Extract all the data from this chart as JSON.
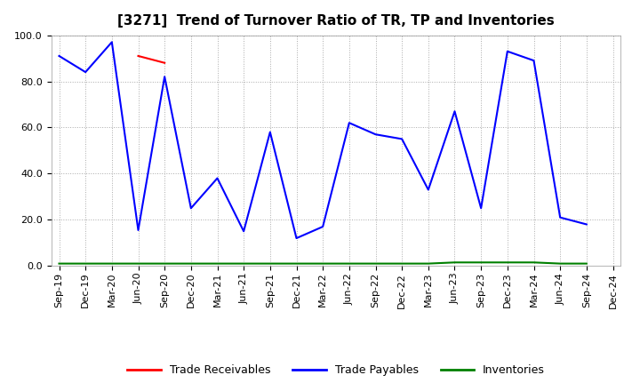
{
  "title": "[3271]  Trend of Turnover Ratio of TR, TP and Inventories",
  "x_labels": [
    "Sep-19",
    "Dec-19",
    "Mar-20",
    "Jun-20",
    "Sep-20",
    "Dec-20",
    "Mar-21",
    "Jun-21",
    "Sep-21",
    "Dec-21",
    "Mar-22",
    "Jun-22",
    "Sep-22",
    "Dec-22",
    "Mar-23",
    "Jun-23",
    "Sep-23",
    "Dec-23",
    "Mar-24",
    "Jun-24",
    "Sep-24",
    "Dec-24"
  ],
  "trade_receivables": [
    null,
    null,
    null,
    91.0,
    88.0,
    null,
    null,
    null,
    null,
    null,
    null,
    null,
    null,
    null,
    null,
    null,
    null,
    null,
    null,
    null,
    null,
    null
  ],
  "trade_payables": [
    91.0,
    84.0,
    97.0,
    15.5,
    82.0,
    25.0,
    38.0,
    15.0,
    58.0,
    12.0,
    17.0,
    62.0,
    57.0,
    55.0,
    33.0,
    67.0,
    25.0,
    93.0,
    89.0,
    21.0,
    18.0,
    null
  ],
  "inventories": [
    1.0,
    1.0,
    1.0,
    1.0,
    1.0,
    1.0,
    1.0,
    1.0,
    1.0,
    1.0,
    1.0,
    1.0,
    1.0,
    1.0,
    1.0,
    1.5,
    1.5,
    1.5,
    1.5,
    1.0,
    1.0,
    null
  ],
  "ylim": [
    0.0,
    100.0
  ],
  "yticks": [
    0.0,
    20.0,
    40.0,
    60.0,
    80.0,
    100.0
  ],
  "tr_color": "#ff0000",
  "tp_color": "#0000ff",
  "inv_color": "#008000",
  "legend_labels": [
    "Trade Receivables",
    "Trade Payables",
    "Inventories"
  ],
  "background_color": "#ffffff",
  "grid_color": "#aaaaaa",
  "title_fontsize": 11,
  "axis_fontsize": 8,
  "legend_fontsize": 9
}
